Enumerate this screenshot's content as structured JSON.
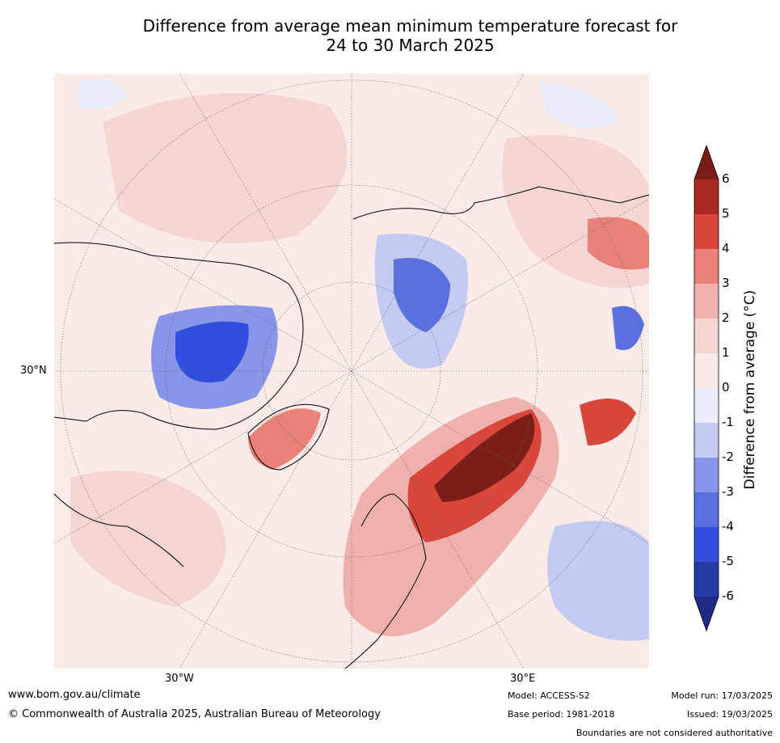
{
  "title_line1": "Difference from average mean minimum temperature forecast for",
  "title_line2": "24 to 30 March 2025",
  "graticule_labels": {
    "lat_30n": "30°N",
    "lon_30w": "30°W",
    "lon_30e": "30°E"
  },
  "colorbar": {
    "label": "Difference from average (°C)",
    "ticks": [
      "6",
      "5",
      "4",
      "3",
      "2",
      "1",
      "0",
      "-1",
      "-2",
      "-3",
      "-4",
      "-5",
      "-6"
    ],
    "colors_top_to_bottom": [
      "#7a1e17",
      "#a82a22",
      "#d9463c",
      "#e88178",
      "#efb1ab",
      "#f6d6d3",
      "#fbebe8",
      "#e9ecfb",
      "#c3cbf3",
      "#8796e8",
      "#5a6fe0",
      "#2f4fdc",
      "#263aa8",
      "#1d2b85"
    ]
  },
  "footer": {
    "website": "www.bom.gov.au/climate",
    "copyright": "© Commonwealth of Australia 2025, Australian Bureau of Meteorology",
    "model": "Model: ACCESS-S2",
    "base_period": "Base period: 1981-2018",
    "model_run": "Model run: 17/03/2025",
    "issued": "Issued: 19/03/2025",
    "disclaimer": "Boundaries are not considered authoritative"
  }
}
